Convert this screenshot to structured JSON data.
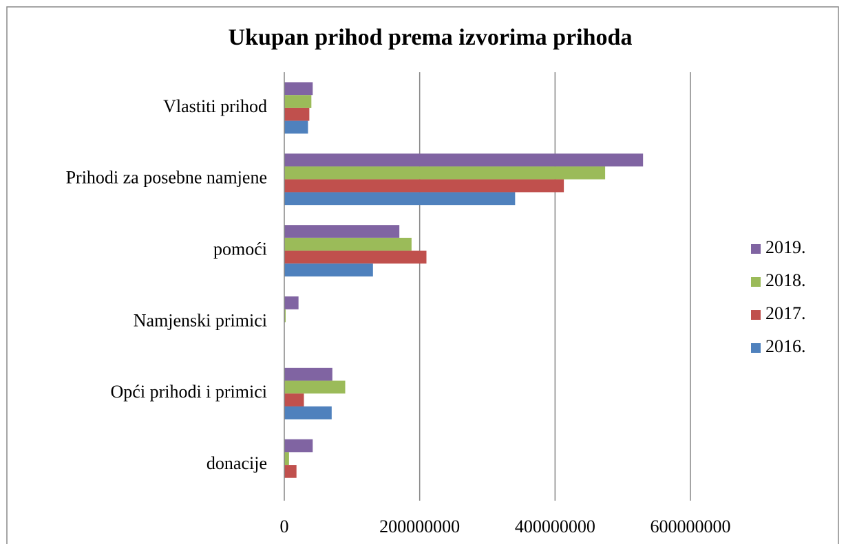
{
  "chart_data": {
    "type": "hbar",
    "title": "Ukupan prihod prema izvorima prihoda",
    "categories": [
      "Vlastiti prihod",
      "Prihodi za posebne namjene",
      "pomoći",
      "Namjenski primici",
      "Opći prihodi i primici",
      "donacije"
    ],
    "series": [
      {
        "name": "2019.",
        "color": "#8064a2",
        "values": [
          42000000,
          530000000,
          170000000,
          21000000,
          71000000,
          42000000
        ]
      },
      {
        "name": "2018.",
        "color": "#9bbb59",
        "values": [
          40000000,
          474000000,
          188000000,
          2000000,
          90000000,
          7000000
        ]
      },
      {
        "name": "2017.",
        "color": "#c0504d",
        "values": [
          37000000,
          413000000,
          210000000,
          0,
          29000000,
          18000000
        ]
      },
      {
        "name": "2016.",
        "color": "#4f81bd",
        "values": [
          35000000,
          341000000,
          131000000,
          0,
          70000000,
          0
        ]
      }
    ],
    "xlim": [
      0,
      600000000
    ],
    "xticks": [
      0,
      200000000,
      400000000,
      600000000
    ],
    "grid": true,
    "legend": "right"
  }
}
